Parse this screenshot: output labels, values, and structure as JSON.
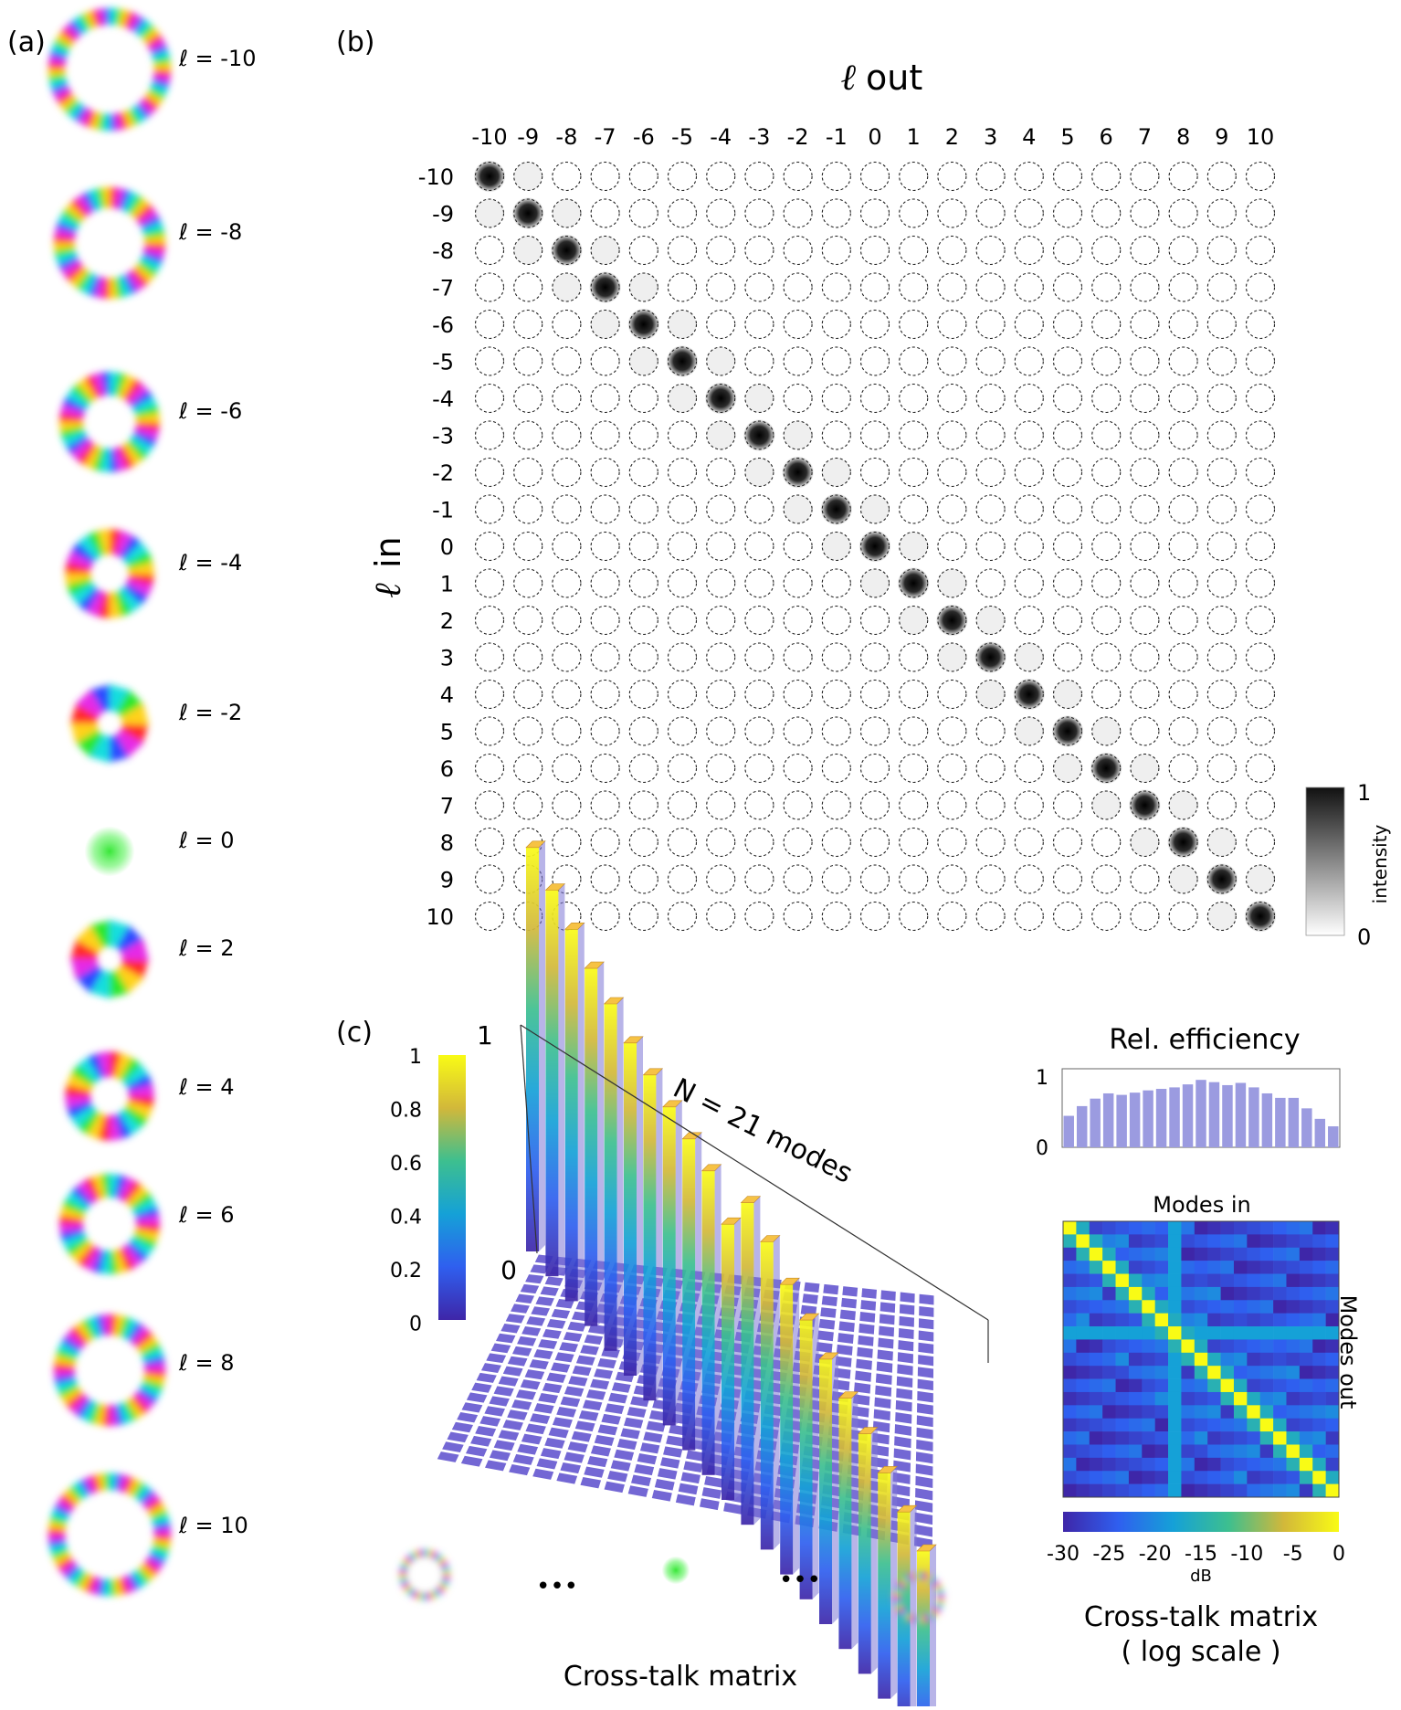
{
  "panel_a": {
    "label": "(a)",
    "modes": [
      {
        "text": "ℓ = -10",
        "l": -10
      },
      {
        "text": "ℓ = -8",
        "l": -8
      },
      {
        "text": "ℓ = -6",
        "l": -6
      },
      {
        "text": "ℓ = -4",
        "l": -4
      },
      {
        "text": "ℓ = -2",
        "l": -2
      },
      {
        "text": "ℓ = 0",
        "l": 0
      },
      {
        "text": "ℓ = 2",
        "l": 2
      },
      {
        "text": "ℓ = 4",
        "l": 4
      },
      {
        "text": "ℓ = 6",
        "l": 6
      },
      {
        "text": "ℓ = 8",
        "l": 8
      },
      {
        "text": "ℓ = 10",
        "l": 10
      }
    ]
  },
  "panel_b": {
    "label": "(b)",
    "title_symbol": "ℓ",
    "title_text": "out",
    "ylabel_symbol": "ℓ",
    "ylabel_text": "in",
    "out_ticks": [
      "-10",
      "-9",
      "-8",
      "-7",
      "-6",
      "-5",
      "-4",
      "-3",
      "-2",
      "-1",
      "0",
      "1",
      "2",
      "3",
      "4",
      "5",
      "6",
      "7",
      "8",
      "9",
      "10"
    ],
    "in_ticks": [
      "-10",
      "-9",
      "-8",
      "-7",
      "-6",
      "-5",
      "-4",
      "-3",
      "-2",
      "-1",
      "0",
      "1",
      "2",
      "3",
      "4",
      "5",
      "6",
      "7",
      "8",
      "9",
      "10"
    ],
    "colorbar": {
      "label": "intensity",
      "max_label": "1",
      "min_label": "0"
    }
  },
  "panel_c": {
    "label": "(c)",
    "bar3d": {
      "axis_top": "1",
      "axis_bottom": "0",
      "annotation": "N = 21 modes",
      "caption": "Cross-talk matrix",
      "ellipsis": "•••",
      "diagonal_values": [
        0.98,
        0.93,
        0.89,
        0.85,
        0.82,
        0.78,
        0.76,
        0.74,
        0.72,
        0.7,
        0.62,
        0.75,
        0.71,
        0.66,
        0.63,
        0.59,
        0.55,
        0.52,
        0.48,
        0.44,
        0.4
      ],
      "colorbar_ticks": [
        "1",
        "0.8",
        "0.6",
        "0.4",
        "0.2",
        "0"
      ]
    },
    "efficiency": {
      "title": "Rel. efficiency",
      "ymax_label": "1",
      "ymin_label": "0",
      "values": [
        0.42,
        0.55,
        0.65,
        0.72,
        0.7,
        0.73,
        0.76,
        0.78,
        0.8,
        0.84,
        0.9,
        0.87,
        0.83,
        0.86,
        0.8,
        0.72,
        0.66,
        0.66,
        0.52,
        0.38,
        0.28
      ],
      "bar_color": "#9b9be0"
    },
    "heatmap": {
      "top_label": "Modes in",
      "side_label": "Modes out",
      "caption_line1": "Cross-talk matrix",
      "caption_line2": "( log scale )",
      "cbar_ticks": [
        "-30",
        "-25",
        "-20",
        "-15",
        "-10",
        "-5",
        "0"
      ],
      "cbar_unit": "dB",
      "range_db": [
        -30,
        0
      ]
    }
  }
}
